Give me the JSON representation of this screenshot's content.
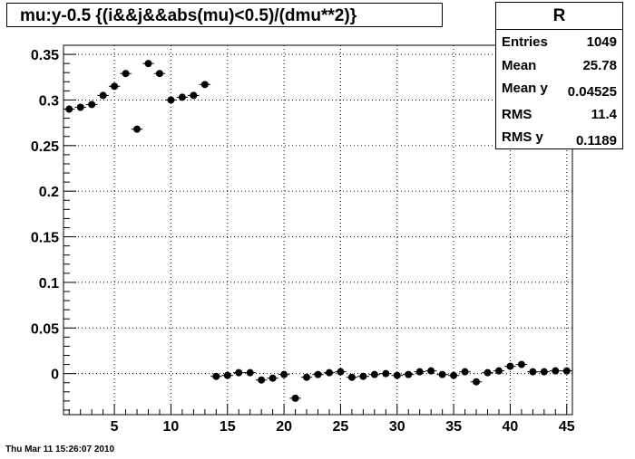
{
  "title": "mu:y-0.5 {(i&&j&&abs(mu)<0.5)/(dmu**2)}",
  "stats": {
    "name": "R",
    "rows": [
      {
        "label": "Entries",
        "value": "1049"
      },
      {
        "label": "Mean",
        "value": "25.78"
      },
      {
        "label": "Mean y",
        "value": "0.04525"
      },
      {
        "label": "RMS",
        "value": "11.4"
      },
      {
        "label": "RMS y",
        "value": "0.1189"
      }
    ]
  },
  "timestamp": "Thu Mar 11 15:26:07 2010",
  "chart_data": {
    "type": "scatter",
    "title": "mu:y-0.5 {(i&&j&&abs(mu)<0.5)/(dmu**2)}",
    "xlabel": "",
    "ylabel": "",
    "xlim": [
      0.5,
      45.5
    ],
    "ylim": [
      -0.045,
      0.36
    ],
    "x_ticks": [
      5,
      10,
      15,
      20,
      25,
      30,
      35,
      40,
      45
    ],
    "y_ticks": [
      0,
      0.05,
      0.1,
      0.15,
      0.2,
      0.25,
      0.3,
      0.35
    ],
    "y_tick_labels": [
      "0",
      "0.05",
      "0.1",
      "0.15",
      "0.2",
      "0.25",
      "0.3",
      "0.35"
    ],
    "grid": true,
    "legend": "none",
    "marker_color": "#000000",
    "points": [
      {
        "x": 1,
        "y": 0.29
      },
      {
        "x": 2,
        "y": 0.292
      },
      {
        "x": 3,
        "y": 0.295
      },
      {
        "x": 4,
        "y": 0.305
      },
      {
        "x": 5,
        "y": 0.315
      },
      {
        "x": 6,
        "y": 0.329
      },
      {
        "x": 7,
        "y": 0.268
      },
      {
        "x": 8,
        "y": 0.34
      },
      {
        "x": 9,
        "y": 0.329
      },
      {
        "x": 10,
        "y": 0.3
      },
      {
        "x": 11,
        "y": 0.303
      },
      {
        "x": 12,
        "y": 0.305
      },
      {
        "x": 13,
        "y": 0.317
      },
      {
        "x": 14,
        "y": -0.003
      },
      {
        "x": 15,
        "y": -0.002
      },
      {
        "x": 16,
        "y": 0.001
      },
      {
        "x": 17,
        "y": 0.001
      },
      {
        "x": 18,
        "y": -0.007
      },
      {
        "x": 19,
        "y": -0.005
      },
      {
        "x": 20,
        "y": -0.001
      },
      {
        "x": 21,
        "y": -0.027
      },
      {
        "x": 22,
        "y": -0.004
      },
      {
        "x": 23,
        "y": -0.001
      },
      {
        "x": 24,
        "y": 0.001
      },
      {
        "x": 25,
        "y": 0.002
      },
      {
        "x": 26,
        "y": -0.004
      },
      {
        "x": 27,
        "y": -0.003
      },
      {
        "x": 28,
        "y": -0.001
      },
      {
        "x": 29,
        "y": 0.0
      },
      {
        "x": 30,
        "y": -0.002
      },
      {
        "x": 31,
        "y": -0.001
      },
      {
        "x": 32,
        "y": 0.002
      },
      {
        "x": 33,
        "y": 0.003
      },
      {
        "x": 34,
        "y": -0.001
      },
      {
        "x": 35,
        "y": -0.002
      },
      {
        "x": 36,
        "y": 0.002
      },
      {
        "x": 37,
        "y": -0.009
      },
      {
        "x": 38,
        "y": 0.001
      },
      {
        "x": 39,
        "y": 0.003
      },
      {
        "x": 40,
        "y": 0.008
      },
      {
        "x": 41,
        "y": 0.01
      },
      {
        "x": 42,
        "y": 0.002
      },
      {
        "x": 43,
        "y": 0.002
      },
      {
        "x": 44,
        "y": 0.003
      },
      {
        "x": 45,
        "y": 0.003
      }
    ]
  }
}
